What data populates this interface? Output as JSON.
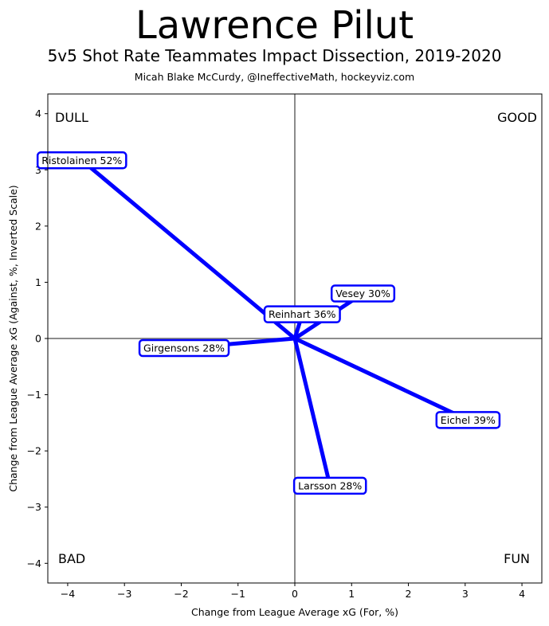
{
  "chart_data": {
    "type": "scatter",
    "title": "Lawrence Pilut",
    "subtitle": "5v5 Shot Rate Teammates Impact Dissection, 2019-2020",
    "credit": "Micah Blake McCurdy, @IneffectiveMath, hockeyviz.com",
    "xlabel": "Change from League Average xG (For, %)",
    "ylabel": "Change from League Average xG (Against, %, Inverted Scale)",
    "xlim": [
      -4.35,
      4.35
    ],
    "ylim": [
      4.35,
      -4.35
    ],
    "y_inverted": true,
    "grid": false,
    "x_ticks": [
      "−4",
      "−3",
      "−2",
      "−1",
      "0",
      "1",
      "2",
      "3",
      "4"
    ],
    "y_ticks": [
      "−4",
      "−3",
      "−2",
      "−1",
      "0",
      "1",
      "2",
      "3",
      "4"
    ],
    "quadrants": {
      "top_left": "DULL",
      "top_right": "GOOD",
      "bottom_left": "BAD",
      "bottom_right": "FUN"
    },
    "line_color": "#0000ff",
    "series": [
      {
        "name": "Larsson 28%",
        "x": 0.62,
        "y": -2.62
      },
      {
        "name": "Eichel 39%",
        "x": 3.05,
        "y": -1.45
      },
      {
        "name": "Girgensons 28%",
        "x": -1.95,
        "y": -0.17
      },
      {
        "name": "Reinhart 36%",
        "x": 0.13,
        "y": 0.43
      },
      {
        "name": "Vesey 30%",
        "x": 1.2,
        "y": 0.8
      },
      {
        "name": "Ristolainen 52%",
        "x": -3.75,
        "y": 3.17
      }
    ]
  }
}
